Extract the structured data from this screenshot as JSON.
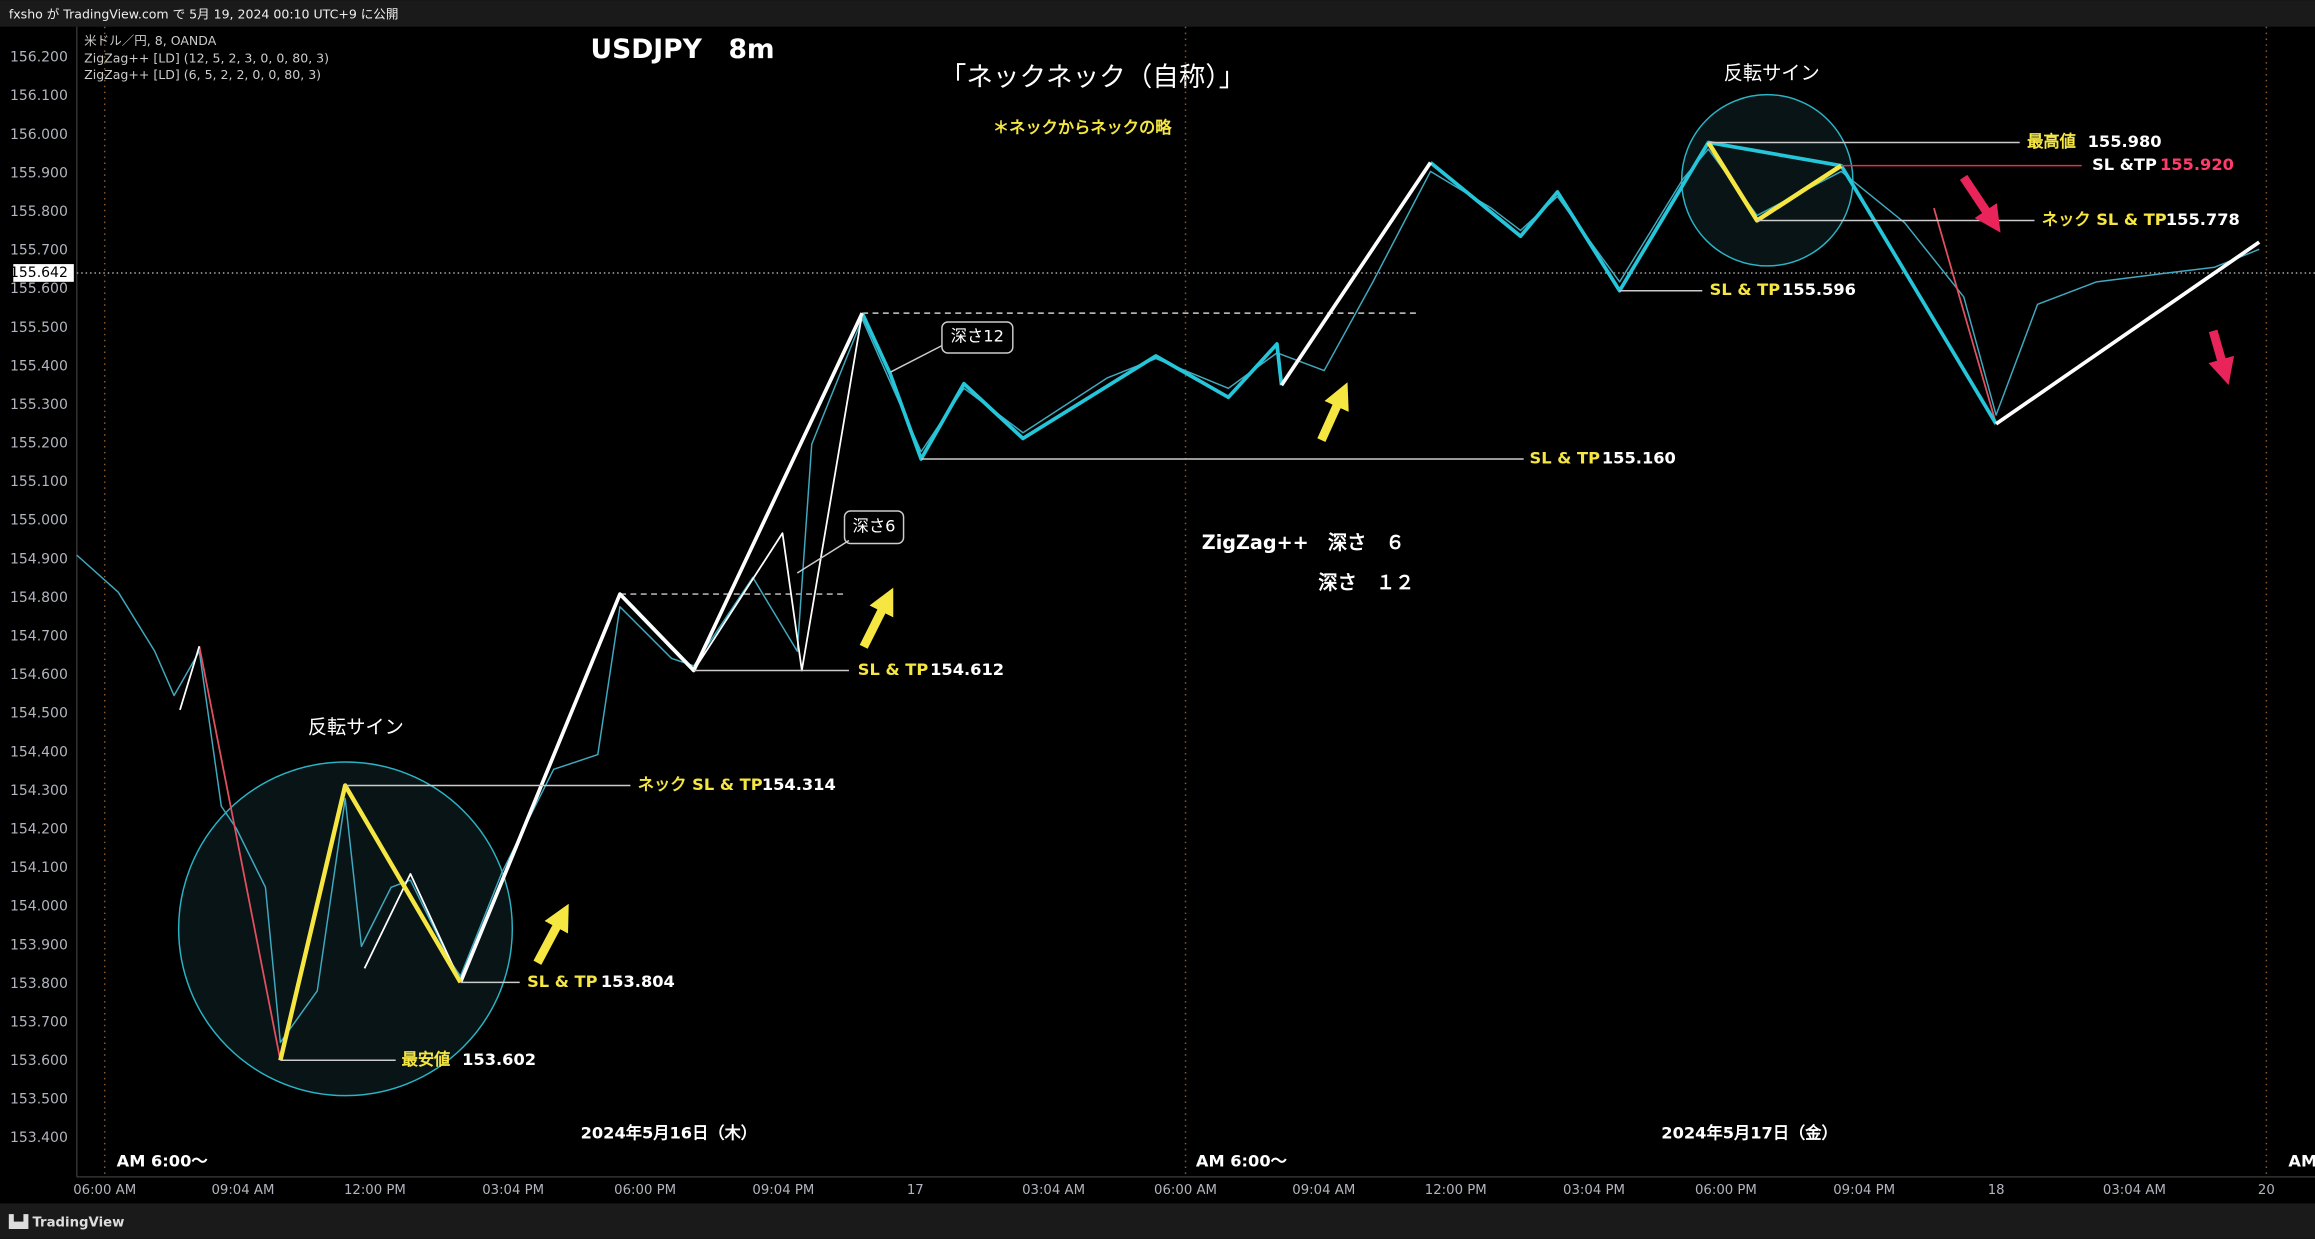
{
  "header": {
    "published": "fxsho が TradingView.com で 5月 19, 2024 00:10 UTC+9 に公開",
    "legend": [
      "米ドル／円, 8, OANDA",
      "ZigZag++ [LD] (12, 5, 2, 3, 0, 0, 80, 3)",
      "ZigZag++ [LD] (6, 5, 2, 2, 0, 0, 80, 3)"
    ],
    "footer": "TradingView"
  },
  "chart_data": {
    "type": "line",
    "title": "USDJPY　8m",
    "subtitle": "「ネックネック（自称）」",
    "note": "＊ネックからネックの略",
    "xlim": [
      -0.62,
      49.08
    ],
    "ylim": [
      153.3,
      156.28
    ],
    "xticks": [
      {
        "value": 0,
        "label": "06:00 AM"
      },
      {
        "value": 3.07,
        "label": "09:04 AM"
      },
      {
        "value": 6,
        "label": "12:00 PM"
      },
      {
        "value": 9.07,
        "label": "03:04 PM"
      },
      {
        "value": 12,
        "label": "06:00 PM"
      },
      {
        "value": 15.07,
        "label": "09:04 PM"
      },
      {
        "value": 18,
        "label": "17"
      },
      {
        "value": 21.07,
        "label": "03:04 AM"
      },
      {
        "value": 24,
        "label": "06:00 AM"
      },
      {
        "value": 27.07,
        "label": "09:04 AM"
      },
      {
        "value": 30,
        "label": "12:00 PM"
      },
      {
        "value": 33.07,
        "label": "03:04 PM"
      },
      {
        "value": 36,
        "label": "06:00 PM"
      },
      {
        "value": 39.07,
        "label": "09:04 PM"
      },
      {
        "value": 42,
        "label": "18"
      },
      {
        "value": 45.07,
        "label": "03:04 AM"
      },
      {
        "value": 48,
        "label": "20"
      }
    ],
    "yticks": [
      {
        "value": 153.4,
        "label": "153.400"
      },
      {
        "value": 153.5,
        "label": "153.500"
      },
      {
        "value": 153.6,
        "label": "153.600"
      },
      {
        "value": 153.7,
        "label": "153.700"
      },
      {
        "value": 153.8,
        "label": "153.800"
      },
      {
        "value": 153.9,
        "label": "153.900"
      },
      {
        "value": 154,
        "label": "154.000"
      },
      {
        "value": 154.1,
        "label": "154.100"
      },
      {
        "value": 154.2,
        "label": "154.200"
      },
      {
        "value": 154.3,
        "label": "154.300"
      },
      {
        "value": 154.4,
        "label": "154.400"
      },
      {
        "value": 154.5,
        "label": "154.500"
      },
      {
        "value": 154.6,
        "label": "154.600"
      },
      {
        "value": 154.7,
        "label": "154.700"
      },
      {
        "value": 154.8,
        "label": "154.800"
      },
      {
        "value": 154.9,
        "label": "154.900"
      },
      {
        "value": 155,
        "label": "155.000"
      },
      {
        "value": 155.1,
        "label": "155.100"
      },
      {
        "value": 155.2,
        "label": "155.200"
      },
      {
        "value": 155.3,
        "label": "155.300"
      },
      {
        "value": 155.4,
        "label": "155.400"
      },
      {
        "value": 155.5,
        "label": "155.500"
      },
      {
        "value": 155.6,
        "label": "155.600"
      },
      {
        "value": 155.7,
        "label": "155.700"
      },
      {
        "value": 155.8,
        "label": "155.800"
      },
      {
        "value": 155.9,
        "label": "155.900"
      },
      {
        "value": 156,
        "label": "156.000"
      },
      {
        "value": 156.1,
        "label": "156.100"
      },
      {
        "value": 156.2,
        "label": "156.200"
      }
    ],
    "last_price": 155.642,
    "session_lines": [
      0,
      24,
      48
    ],
    "dashed_levels": [
      155.538,
      154.81
    ],
    "series": [
      {
        "color": "#3fa9bf",
        "x": [
          -0.62,
          0.3,
          1.11,
          1.54,
          2.1,
          2.59,
          2.92,
          3.57,
          3.9,
          4.72,
          5.34,
          5.7,
          6.36,
          6.79,
          7.67,
          7.9,
          8.82,
          9.97,
          10.95,
          11.44,
          12.59,
          13.08,
          14.39,
          15.38,
          15.7,
          16.82,
          18.13,
          19.08,
          20.39,
          22.26,
          23.34,
          24.95,
          26.03,
          27.08,
          28.16,
          29.44,
          30.79,
          31.44,
          32.26,
          33.64,
          35.05,
          35.61,
          36.69,
          38.56,
          39.97,
          41.28,
          42,
          42.92,
          44.23,
          45.54,
          46.85,
          47.84
        ],
        "values": [
          154.911,
          154.815,
          154.662,
          154.547,
          154.662,
          154.26,
          154.203,
          154.05,
          153.648,
          153.782,
          154.28,
          153.897,
          154.05,
          154.069,
          153.859,
          153.82,
          154.088,
          154.356,
          154.394,
          154.777,
          154.643,
          154.624,
          154.853,
          154.662,
          155.198,
          155.523,
          155.179,
          155.343,
          155.228,
          155.37,
          155.42,
          155.343,
          155.435,
          155.389,
          155.619,
          155.905,
          155.81,
          155.752,
          155.84,
          155.619,
          155.886,
          155.963,
          155.791,
          155.905,
          155.772,
          155.58,
          155.274,
          155.561,
          155.619,
          155.638,
          155.657,
          155.703
        ]
      },
      {
        "color": "#e05060",
        "x": [
          2.1,
          3.9,
          null,
          40.62,
          42
        ],
        "values": [
          154.675,
          153.602,
          null,
          155.81,
          155.251
        ]
      },
      {
        "color": "#ffffff",
        "x": [
          1.67,
          2.1,
          null,
          5.77,
          6.79,
          7.9,
          null,
          13.08,
          15.05,
          15.48,
          16.82
        ],
        "values": [
          154.51,
          154.675,
          null,
          153.84,
          154.085,
          153.804,
          null,
          154.612,
          154.968,
          154.612,
          155.538
        ]
      },
      {
        "color": "#26c6da",
        "x": [
          11.44,
          13.08,
          null,
          16.82,
          17.44,
          18.13,
          19.08,
          20.39,
          23.34,
          24.95,
          26.03,
          26.13,
          null,
          29.44,
          31.44,
          32.26,
          33.64,
          35.61,
          38.56,
          39.31,
          42
        ],
        "values": [
          154.81,
          154.612,
          null,
          155.538,
          155.381,
          155.16,
          155.355,
          155.213,
          155.427,
          155.32,
          155.458,
          155.351,
          null,
          155.928,
          155.737,
          155.852,
          155.596,
          155.98,
          155.92,
          155.775,
          155.251
        ]
      },
      {
        "color": "#ffffff",
        "x": [
          7.9,
          11.44,
          13.08,
          16.82,
          null,
          26.13,
          29.44,
          null,
          42,
          47.84
        ],
        "values": [
          153.804,
          154.81,
          154.612,
          155.538,
          null,
          155.351,
          155.928,
          null,
          155.251,
          155.722
        ]
      },
      {
        "color": "#f5e642",
        "x": [
          3.9,
          5.34,
          7.9,
          null,
          35.61,
          36.69,
          38.56
        ],
        "values": [
          153.602,
          154.314,
          153.804,
          null,
          155.98,
          155.778,
          155.92
        ]
      }
    ],
    "levels": [
      {
        "label": "最安値",
        "value": 153.602
      },
      {
        "label": "SL & TP",
        "value": 153.804
      },
      {
        "label": "ネック SL & TP",
        "value": 154.314
      },
      {
        "label": "SL & TP",
        "value": 154.612
      },
      {
        "label": "SL & TP",
        "value": 155.16,
        "value_label": "155.160"
      },
      {
        "label": "SL & TP",
        "value": 155.596
      },
      {
        "label": "最高値",
        "value": 155.98,
        "value_label": "155.980"
      },
      {
        "label": "SL &TP",
        "value": 155.92,
        "value_label": "155.920"
      },
      {
        "label": "ネック SL & TP",
        "value": 155.778
      }
    ],
    "labels": [
      "反転サイン",
      "反転サイン",
      "ZigZag++　深さ　６",
      "深さ　１２",
      "AM 6:00～",
      "AM 6:00～",
      "2024年5月16日（木）",
      "2024年5月17日（金）",
      "AM",
      "深さ12",
      "深さ6"
    ]
  }
}
